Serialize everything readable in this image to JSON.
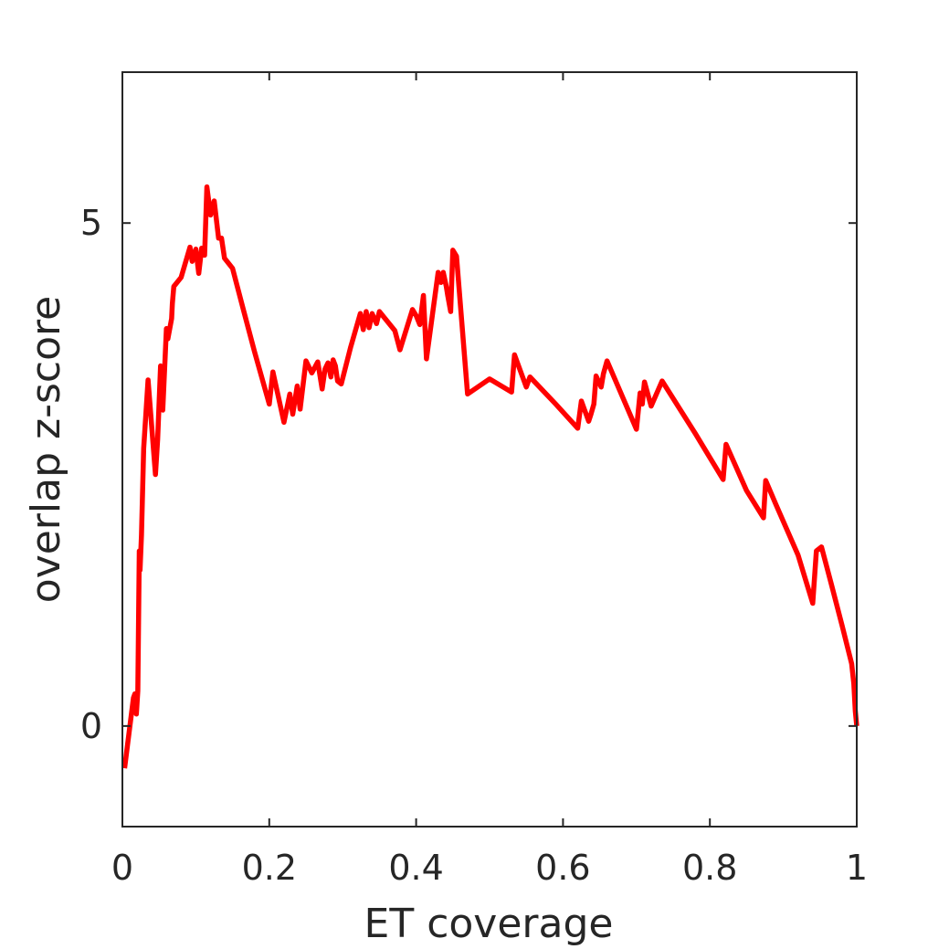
{
  "chart_data": {
    "type": "line",
    "title": "",
    "xlabel": "ET coverage",
    "ylabel": "overlap z-score",
    "xlim": [
      0,
      1
    ],
    "ylim": [
      -1,
      6.5
    ],
    "xticks": [
      0,
      0.2,
      0.4,
      0.6,
      0.8,
      1
    ],
    "xtick_labels": [
      "0",
      "0.2",
      "0.4",
      "0.6",
      "0.8",
      "1"
    ],
    "yticks": [
      0,
      5
    ],
    "ytick_labels": [
      "0",
      "5"
    ],
    "grid": false,
    "box": true,
    "line_color": "#ff0000",
    "axis_color": "#262626",
    "series": [
      {
        "x": [
          0.003,
          0.015,
          0.017,
          0.019,
          0.021,
          0.023,
          0.024,
          0.026,
          0.029,
          0.035,
          0.045,
          0.048,
          0.052,
          0.055,
          0.06,
          0.062,
          0.067,
          0.068,
          0.07,
          0.08,
          0.092,
          0.095,
          0.1,
          0.104,
          0.108,
          0.112,
          0.115,
          0.12,
          0.125,
          0.131,
          0.135,
          0.139,
          0.15,
          0.165,
          0.18,
          0.2,
          0.205,
          0.22,
          0.228,
          0.232,
          0.238,
          0.242,
          0.25,
          0.258,
          0.266,
          0.272,
          0.276,
          0.28,
          0.284,
          0.287,
          0.29,
          0.293,
          0.298,
          0.311,
          0.324,
          0.328,
          0.332,
          0.336,
          0.34,
          0.346,
          0.35,
          0.371,
          0.378,
          0.395,
          0.4,
          0.405,
          0.41,
          0.414,
          0.43,
          0.434,
          0.437,
          0.441,
          0.443,
          0.447,
          0.45,
          0.455,
          0.47,
          0.5,
          0.53,
          0.534,
          0.55,
          0.555,
          0.59,
          0.62,
          0.625,
          0.635,
          0.638,
          0.642,
          0.645,
          0.652,
          0.655,
          0.66,
          0.7,
          0.705,
          0.708,
          0.711,
          0.72,
          0.735,
          0.78,
          0.818,
          0.822,
          0.85,
          0.873,
          0.876,
          0.89,
          0.92,
          0.94,
          0.945,
          0.952,
          0.965,
          0.98,
          0.993,
          0.996,
          0.998,
          1.0
        ],
        "y": [
          -0.42,
          0.28,
          0.32,
          0.12,
          0.35,
          1.74,
          1.55,
          1.9,
          2.76,
          3.44,
          2.5,
          2.85,
          3.58,
          3.14,
          3.95,
          3.85,
          4.05,
          4.2,
          4.37,
          4.46,
          4.76,
          4.62,
          4.74,
          4.5,
          4.75,
          4.68,
          5.36,
          5.08,
          5.22,
          4.85,
          4.85,
          4.65,
          4.55,
          4.13,
          3.72,
          3.2,
          3.52,
          3.02,
          3.3,
          3.1,
          3.38,
          3.15,
          3.63,
          3.51,
          3.62,
          3.35,
          3.55,
          3.61,
          3.47,
          3.64,
          3.58,
          3.43,
          3.4,
          3.77,
          4.1,
          3.94,
          4.12,
          3.96,
          4.1,
          4.0,
          4.12,
          3.93,
          3.74,
          4.14,
          4.08,
          3.99,
          4.28,
          3.65,
          4.51,
          4.41,
          4.51,
          4.37,
          4.28,
          4.12,
          4.73,
          4.67,
          3.3,
          3.45,
          3.32,
          3.69,
          3.37,
          3.47,
          3.2,
          2.96,
          3.23,
          3.03,
          3.1,
          3.2,
          3.48,
          3.37,
          3.5,
          3.63,
          2.95,
          3.31,
          3.2,
          3.42,
          3.18,
          3.43,
          2.91,
          2.45,
          2.8,
          2.34,
          2.07,
          2.44,
          2.2,
          1.7,
          1.22,
          1.74,
          1.78,
          1.42,
          1.0,
          0.62,
          0.42,
          0.15,
          0.0
        ]
      }
    ]
  }
}
